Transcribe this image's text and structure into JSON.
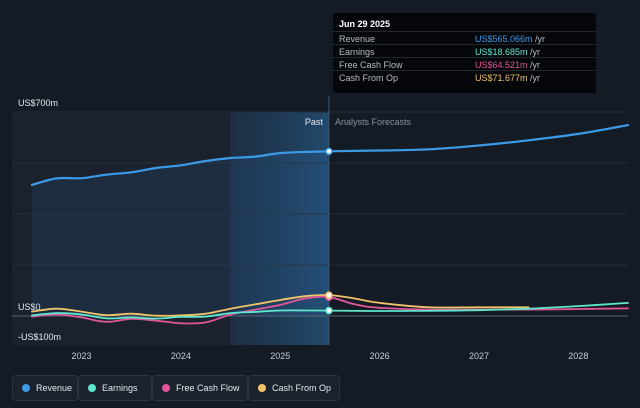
{
  "tooltip": {
    "date": "Jun 29 2025",
    "rows": [
      {
        "label": "Revenue",
        "value": "US$565.066m",
        "unit": " /yr",
        "color": "#3c9be8"
      },
      {
        "label": "Earnings",
        "value": "US$18.685m",
        "unit": " /yr",
        "color": "#5ee6cf"
      },
      {
        "label": "Free Cash Flow",
        "value": "US$64.521m",
        "unit": " /yr",
        "color": "#e0559a"
      },
      {
        "label": "Cash From Op",
        "value": "US$71.677m",
        "unit": " /yr",
        "color": "#f2c46a"
      }
    ]
  },
  "legend": [
    {
      "label": "Revenue",
      "color": "#3c9be8"
    },
    {
      "label": "Earnings",
      "color": "#5ee6cf"
    },
    {
      "label": "Free Cash Flow",
      "color": "#e0559a"
    },
    {
      "label": "Cash From Op",
      "color": "#f2c46a"
    }
  ],
  "chart_data": {
    "type": "line",
    "past_label": "Past",
    "forecast_label": "Analysts Forecasts",
    "divider_x": 2025.49,
    "highlight_start": 2024.5,
    "xlim": [
      2022.3,
      2028.5
    ],
    "ylim": [
      -100,
      700
    ],
    "y_tick_labels": [
      {
        "value": 700,
        "label": "US$700m"
      },
      {
        "value": 0,
        "label": "US$0"
      },
      {
        "value": -100,
        "label": "-US$100m"
      }
    ],
    "x_ticks": [
      2023,
      2024,
      2025,
      2026,
      2027,
      2028
    ],
    "x_tick_labels": [
      "2023",
      "2024",
      "2025",
      "2026",
      "2027",
      "2028"
    ],
    "series": [
      {
        "name": "Revenue",
        "color": "#3c9be8",
        "x": [
          2022.5,
          2022.75,
          2023.0,
          2023.25,
          2023.5,
          2023.75,
          2024.0,
          2024.25,
          2024.5,
          2024.75,
          2025.0,
          2025.25,
          2025.49,
          2026.0,
          2026.5,
          2027.0,
          2027.5,
          2028.0,
          2028.5
        ],
        "y": [
          450,
          472,
          473,
          485,
          493,
          508,
          517,
          532,
          542,
          547,
          559,
          563,
          565,
          568,
          572,
          585,
          603,
          625,
          655
        ]
      },
      {
        "name": "Earnings",
        "color": "#5ee6cf",
        "x": [
          2022.5,
          2022.75,
          2023.0,
          2023.25,
          2023.5,
          2023.75,
          2024.0,
          2024.25,
          2024.5,
          2024.75,
          2025.0,
          2025.25,
          2025.49,
          2026.0,
          2026.5,
          2027.0,
          2027.5,
          2028.0,
          2028.5
        ],
        "y": [
          2,
          10,
          5,
          -8,
          -5,
          -9,
          -3,
          -2,
          10,
          14,
          19,
          19,
          18.7,
          17,
          18,
          20,
          25,
          34,
          45
        ]
      },
      {
        "name": "Free Cash Flow",
        "color": "#e0559a",
        "x": [
          2022.5,
          2022.75,
          2023.0,
          2023.25,
          2023.5,
          2023.75,
          2024.0,
          2024.25,
          2024.5,
          2024.75,
          2025.0,
          2025.25,
          2025.49,
          2025.75,
          2026.0,
          2026.5,
          2027.0,
          2027.5,
          2028.0,
          2028.5
        ],
        "y": [
          -2,
          5,
          -5,
          -20,
          -10,
          -16,
          -25,
          -22,
          5,
          22,
          38,
          60,
          64.5,
          40,
          28,
          22,
          22,
          22,
          24,
          26
        ]
      },
      {
        "name": "Cash From Op",
        "color": "#f2c46a",
        "x": [
          2022.5,
          2022.75,
          2023.0,
          2023.25,
          2023.5,
          2023.75,
          2024.0,
          2024.25,
          2024.5,
          2024.75,
          2025.0,
          2025.25,
          2025.49,
          2025.75,
          2026.0,
          2026.5,
          2027.0,
          2027.5
        ],
        "y": [
          15,
          25,
          15,
          3,
          8,
          1,
          2,
          8,
          25,
          40,
          55,
          68,
          71.7,
          60,
          45,
          30,
          30,
          30
        ]
      }
    ]
  }
}
